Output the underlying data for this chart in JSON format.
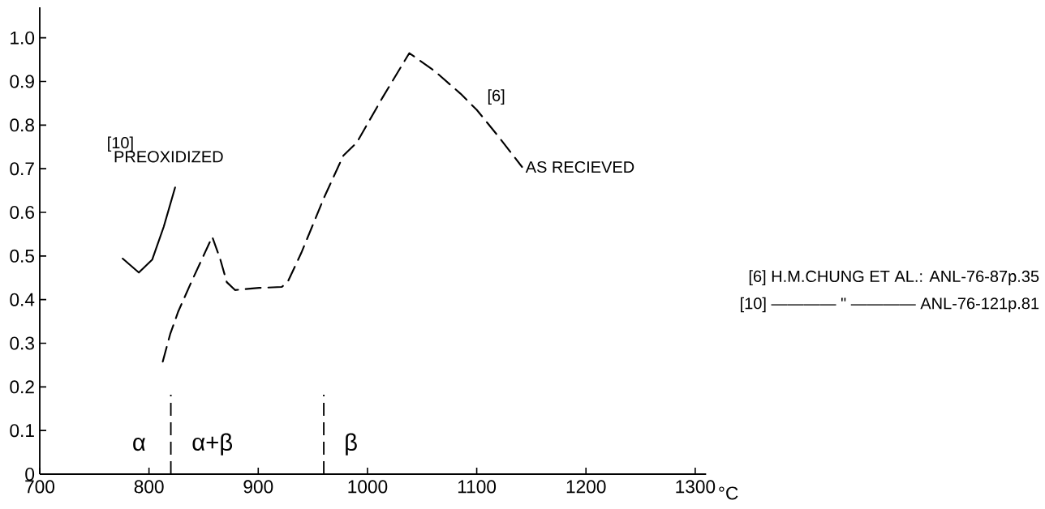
{
  "chart_data": {
    "type": "line",
    "xlabel": "°C",
    "series": [
      {
        "name": "PREOXIDIZED",
        "color": "#000000",
        "line_style": "solid",
        "x": [
          775.9,
          790.7,
          803,
          813.5,
          823.9
        ],
        "values": [
          0.494,
          0.462,
          0.492,
          0.567,
          0.657
        ]
      },
      {
        "name": "AS RECIEVED",
        "color": "#000000",
        "line_style": "dashed",
        "x": [
          812.6,
          819.4,
          826.8,
          838.7,
          857.9,
          865.3,
          871.2,
          878.7,
          900.9,
          921.6,
          927.6,
          939.4,
          960.1,
          977.9,
          990.2,
          1014,
          1038.3,
          1061.4,
          1085.2,
          1100,
          1120.8,
          1141.5
        ],
        "values": [
          0.258,
          0.321,
          0.373,
          0.44,
          0.544,
          0.492,
          0.44,
          0.422,
          0.427,
          0.429,
          0.444,
          0.507,
          0.633,
          0.73,
          0.76,
          0.864,
          0.965,
          0.924,
          0.872,
          0.835,
          0.771,
          0.704
        ]
      }
    ],
    "xlim": [
      700,
      1310
    ],
    "ylim": [
      0,
      1.07
    ],
    "xticks": [
      700,
      800,
      900,
      1000,
      1100,
      1200,
      1300
    ],
    "yticks": [
      0,
      0.1,
      0.2,
      0.3,
      0.4,
      0.5,
      0.6,
      0.7,
      0.8,
      0.9,
      {
        "value": 1.0,
        "label": "1.0"
      }
    ],
    "grid": false,
    "marker": "none",
    "ref_lines": [
      {
        "axis": "x",
        "value": 820,
        "line_style": "dashed"
      },
      {
        "axis": "x",
        "value": 960,
        "line_style": "dashed"
      }
    ],
    "annotations": [
      "[10]",
      "[6]",
      "α",
      "α+β",
      "β",
      "[6] H.M.CHUNG ET AL.: ANL-76-87p.35",
      "[10] ———— \" ———— ANL-76-121p.81"
    ]
  }
}
